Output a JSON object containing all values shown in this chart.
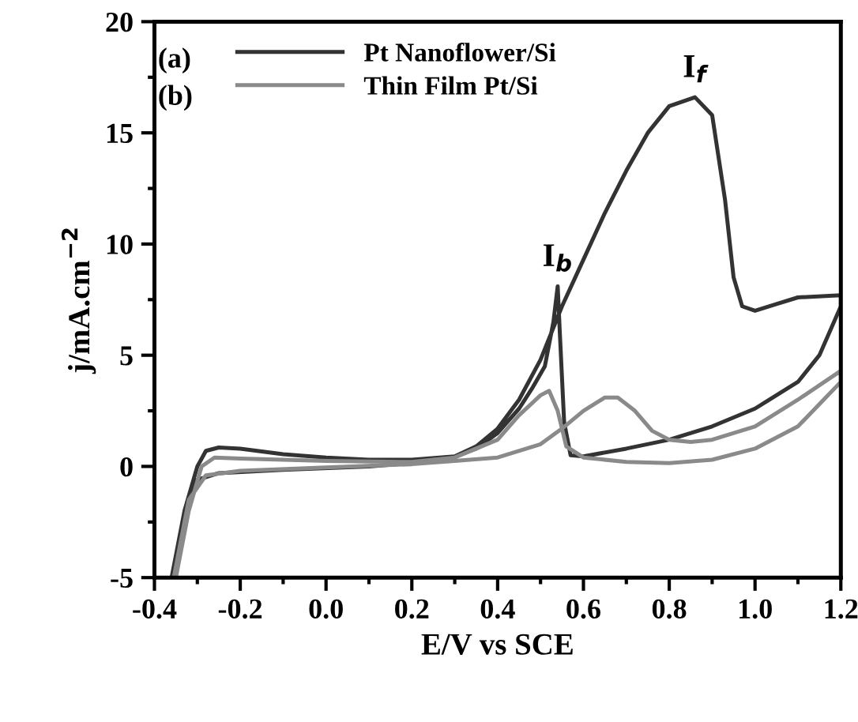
{
  "chart_data": {
    "type": "line",
    "xlabel": "E/V vs SCE",
    "ylabel": "j/mA.cm$^{−2}$",
    "xlim": [
      -0.4,
      1.2
    ],
    "ylim": [
      -5,
      20
    ],
    "xticks": [
      {
        "value": -0.4,
        "label": "-0.4"
      },
      {
        "value": -0.2,
        "label": "-0.2"
      },
      {
        "value": 0,
        "label": "0.0"
      },
      {
        "value": 0.2,
        "label": "0.2"
      },
      {
        "value": 0.4,
        "label": "0.4"
      },
      {
        "value": 0.6,
        "label": "0.6"
      },
      {
        "value": 0.8,
        "label": "0.8"
      },
      {
        "value": 1.0,
        "label": "1.0"
      },
      {
        "value": 1.2,
        "label": "1.2"
      }
    ],
    "yticks": [
      {
        "value": -5,
        "label": "-5"
      },
      0,
      5,
      10,
      15,
      20
    ],
    "legend": "top left",
    "grid": false,
    "marker": "none",
    "line_style": "solid",
    "annotations": [
      "(a)",
      "(b)",
      {
        "text": "I$_{b}$",
        "x": 0.54,
        "y": 8.1
      },
      {
        "text": "I$_{f}$",
        "x": 0.86,
        "y": 16.6
      }
    ],
    "series": [
      {
        "name": "Pt Nanoflower/Si",
        "color": "#333333",
        "x": [
          -0.36,
          -0.33,
          -0.3,
          -0.25,
          -0.1,
          0.1,
          0.2,
          0.3,
          0.35,
          0.4,
          0.45,
          0.5,
          0.55,
          0.6,
          0.65,
          0.7,
          0.75,
          0.8,
          0.86,
          0.9,
          0.93,
          0.95,
          0.97,
          1.0,
          1.05,
          1.1,
          1.2,
          1.2,
          1.15,
          1.1,
          1.0,
          0.9,
          0.8,
          0.7,
          0.6,
          0.57,
          0.555,
          0.545,
          0.54,
          0.53,
          0.51,
          0.48,
          0.45,
          0.4,
          0.35,
          0.3,
          0.2,
          0.1,
          0.0,
          -0.1,
          -0.2,
          -0.25,
          -0.28,
          -0.3,
          -0.33,
          -0.355
        ],
        "values": [
          -5,
          -2,
          -0.6,
          -0.3,
          -0.15,
          0,
          0.15,
          0.45,
          0.9,
          1.7,
          3.0,
          4.8,
          7.2,
          9.3,
          11.4,
          13.3,
          15,
          16.2,
          16.6,
          15.8,
          12,
          8.5,
          7.2,
          7.0,
          7.3,
          7.6,
          7.7,
          7.2,
          5,
          3.8,
          2.6,
          1.8,
          1.2,
          0.8,
          0.45,
          0.5,
          2,
          6,
          8.1,
          6.5,
          4.5,
          3.5,
          2.6,
          1.5,
          0.8,
          0.45,
          0.3,
          0.3,
          0.4,
          0.55,
          0.8,
          0.85,
          0.7,
          0,
          -2,
          -5
        ]
      },
      {
        "name": "Thin Film Pt/Si",
        "color": "#8a8a8a",
        "x": [
          -0.355,
          -0.32,
          -0.28,
          -0.2,
          0.0,
          0.2,
          0.3,
          0.4,
          0.5,
          0.55,
          0.6,
          0.65,
          0.68,
          0.72,
          0.76,
          0.8,
          0.85,
          0.9,
          1.0,
          1.1,
          1.2,
          1.2,
          1.1,
          1.0,
          0.9,
          0.8,
          0.7,
          0.6,
          0.56,
          0.54,
          0.52,
          0.5,
          0.45,
          0.4,
          0.3,
          0.2,
          0.0,
          -0.2,
          -0.26,
          -0.29,
          -0.32,
          -0.35
        ],
        "values": [
          -5,
          -1.5,
          -0.4,
          -0.2,
          -0.05,
          0.1,
          0.25,
          0.4,
          1.0,
          1.7,
          2.5,
          3.1,
          3.1,
          2.5,
          1.6,
          1.2,
          1.1,
          1.2,
          1.8,
          3.0,
          4.3,
          3.8,
          1.8,
          0.8,
          0.3,
          0.15,
          0.2,
          0.4,
          0.9,
          2.5,
          3.4,
          3.2,
          2.3,
          1.2,
          0.4,
          0.2,
          0.25,
          0.35,
          0.4,
          0,
          -2,
          -5
        ]
      }
    ]
  }
}
